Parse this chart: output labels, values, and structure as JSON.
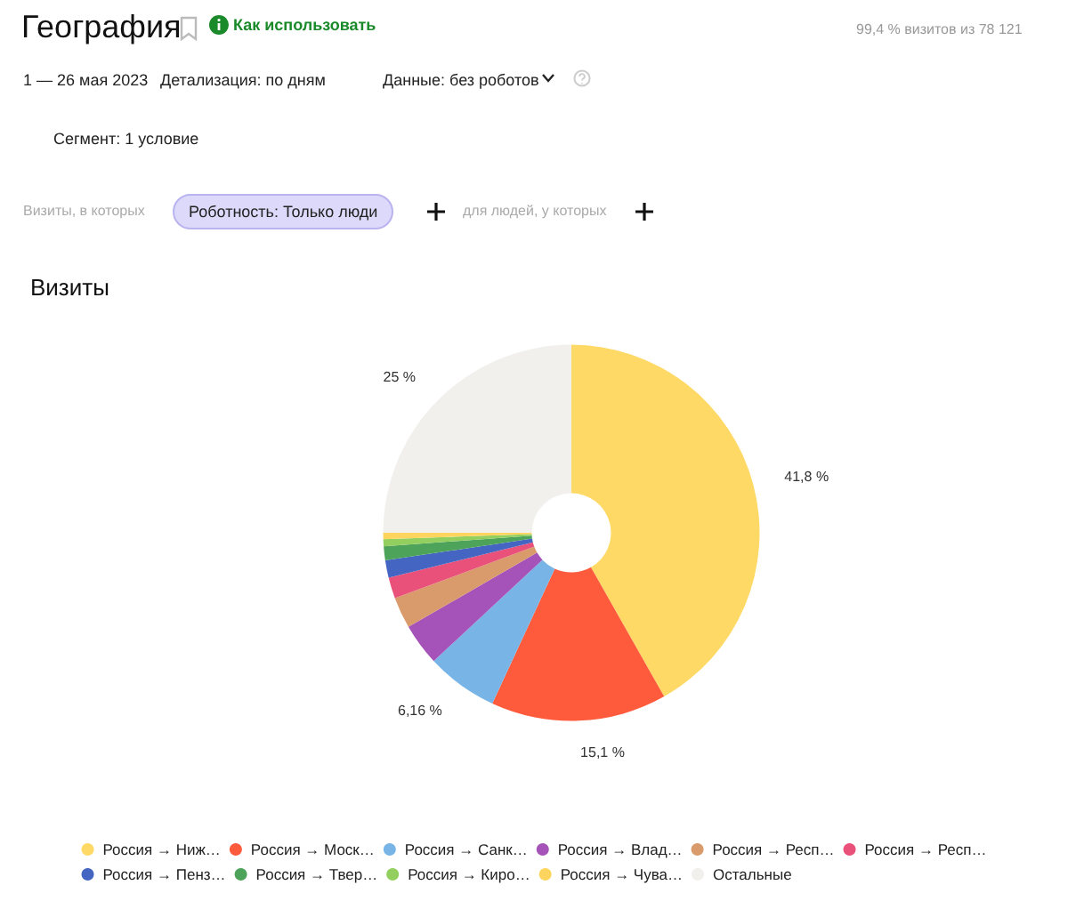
{
  "chart_data": {
    "type": "donut",
    "title": "Визиты",
    "annotations": [
      "География",
      "Как использовать",
      "99,4 % визитов из 78 121",
      "1 — 26 мая 2023",
      "Детализация: по дням",
      "Данные: без роботов",
      "Сегмент: 1 условие",
      "Визиты, в которых",
      "Роботность: Только люди",
      "для людей, у которых"
    ],
    "categories": [
      "Россия → Ниж…",
      "Россия → Моск…",
      "Россия → Санк…",
      "Россия → Влад…",
      "Россия → Респ…",
      "Россия → Респ…",
      "Россия → Пенз…",
      "Россия → Твер…",
      "Россия → Киро…",
      "Россия → Чува…",
      "Остальные"
    ],
    "values": [
      41.8,
      15.1,
      6.16,
      3.6,
      2.7,
      1.8,
      1.5,
      1.2,
      0.6,
      0.54,
      25
    ],
    "value_labels": [
      "41,8 %",
      "15,1 %",
      "6,16 %",
      null,
      null,
      null,
      null,
      null,
      null,
      null,
      "25 %"
    ],
    "colors": [
      "#fed966",
      "#fe5b3c",
      "#78b5e6",
      "#a553b8",
      "#d99a6c",
      "#e9507a",
      "#4466c2",
      "#4ea35a",
      "#93cf5f",
      "#fdd55e",
      "#f1f0ec"
    ],
    "legend": "bottom"
  }
}
